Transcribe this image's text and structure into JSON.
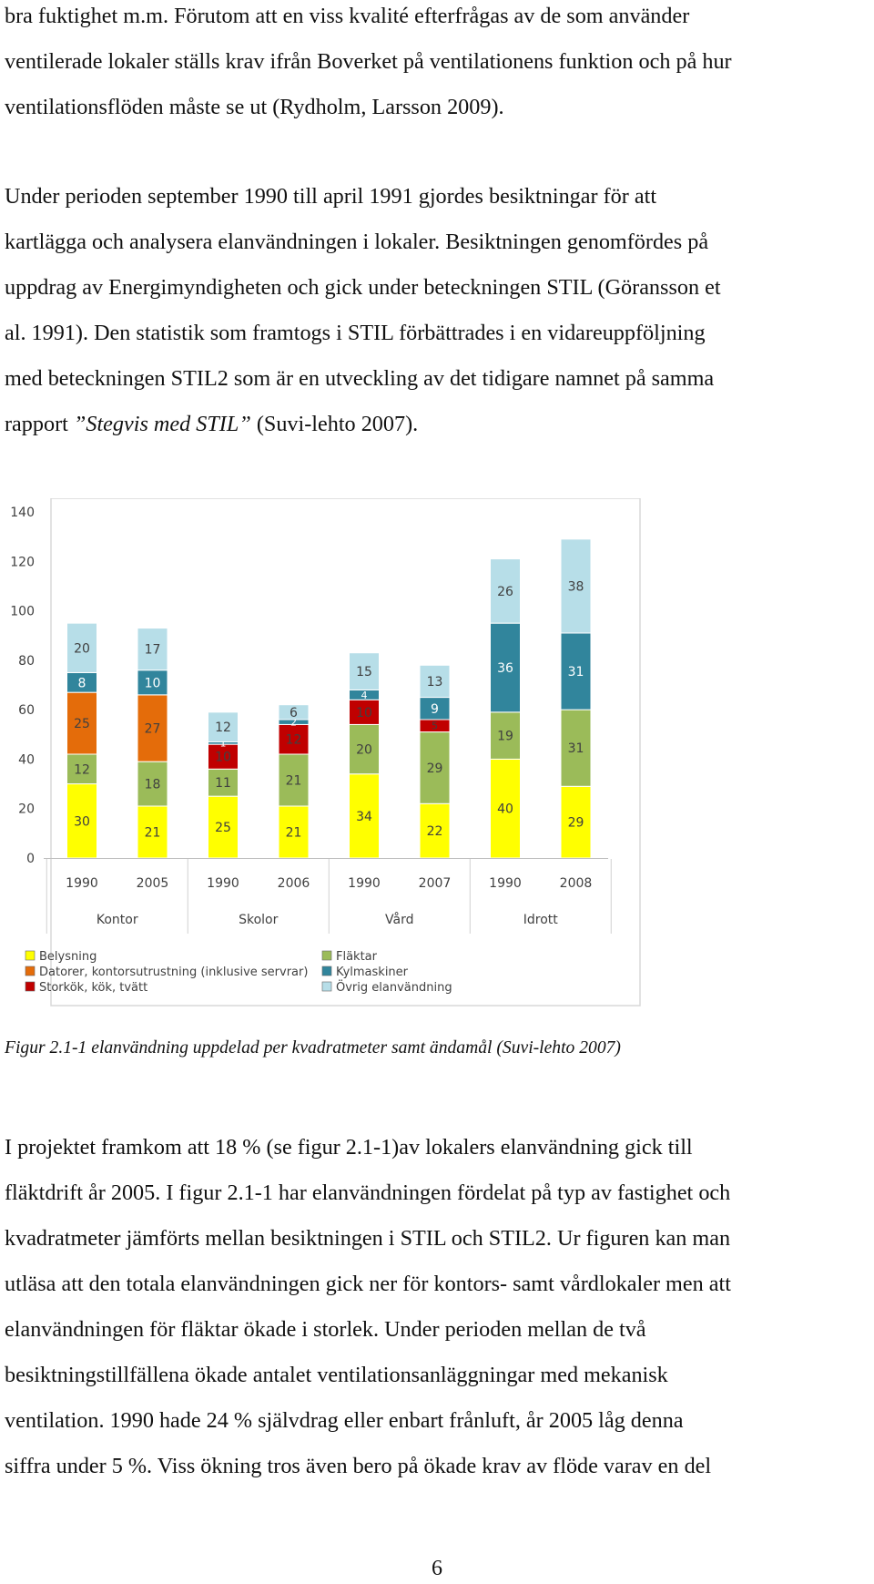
{
  "paragraph1": {
    "lines": [
      "bra fuktighet m.m. Förutom att en viss kvalité efterfrågas av de som använder",
      "ventilerade lokaler ställs krav ifrån Boverket på ventilationens funktion och på hur",
      "ventilationsflöden måste se ut (Rydholm, Larsson 2009)."
    ]
  },
  "paragraph2": {
    "lines": [
      "Under perioden september 1990 till april 1991 gjordes besiktningar för att",
      "kartlägga och analysera elanvändningen i lokaler. Besiktningen genomfördes på",
      "uppdrag av Energimyndigheten och gick under beteckningen STIL (Göransson et",
      "al. 1991). Den statistik som framtogs i STIL förbättrades i en vidareuppföljning",
      "med beteckningen STIL2 som är en utveckling av det tidigare namnet på samma"
    ],
    "last_line_pre": "rapport ",
    "last_line_italic": "”Stegvis med STIL”",
    "last_line_post": " (Suvi-lehto 2007)."
  },
  "chart_data": {
    "type": "bar",
    "stacked": true,
    "groups": [
      "Kontor",
      "Skolor",
      "Vård",
      "Idrott"
    ],
    "categories": [
      "1990",
      "2005",
      "1990",
      "2006",
      "1990",
      "2007",
      "1990",
      "2008"
    ],
    "series": [
      {
        "name": "Belysning",
        "color": "#ffff00",
        "values": [
          30,
          21,
          25,
          21,
          34,
          22,
          40,
          29
        ]
      },
      {
        "name": "Fläktar",
        "color": "#9bbb59",
        "values": [
          12,
          18,
          11,
          21,
          20,
          29,
          19,
          31
        ]
      },
      {
        "name": "Datorer, kontorsutrustning (inklusive servrar)",
        "color": "#e46c0a",
        "values": [
          25,
          27,
          0,
          0,
          0,
          0,
          0,
          0
        ]
      },
      {
        "name": "Storkök, kök, tvätt",
        "color": "#c00000",
        "values": [
          0,
          0,
          10,
          12,
          10,
          5,
          0,
          0
        ]
      },
      {
        "name": "Kylmaskiner",
        "color": "#31859c",
        "values": [
          8,
          10,
          1,
          2,
          4,
          9,
          36,
          31
        ]
      },
      {
        "name": "Övrig elanvändning",
        "color": "#b7dee8",
        "values": [
          20,
          17,
          12,
          6,
          15,
          13,
          26,
          38
        ]
      }
    ],
    "data_labels": [
      [
        "30",
        "12",
        "25",
        null,
        "8",
        "20"
      ],
      [
        "21",
        "18",
        "27",
        null,
        "10",
        "17"
      ],
      [
        "25",
        "11",
        null,
        "10",
        "1",
        "12"
      ],
      [
        "21",
        "21",
        null,
        "12",
        "2",
        "6"
      ],
      [
        "34",
        "20",
        null,
        "10",
        "4",
        "15"
      ],
      [
        "22",
        "29",
        null,
        "5",
        "9",
        "13"
      ],
      [
        "40",
        "19",
        null,
        null,
        "36",
        "26"
      ],
      [
        "29",
        "31",
        null,
        null,
        "31",
        "38"
      ]
    ],
    "ylim": [
      0,
      140
    ],
    "yticks": [
      "0",
      "20",
      "40",
      "60",
      "80",
      "100",
      "120",
      "140"
    ],
    "legend_position": "bottom",
    "legend_order": [
      "Belysning",
      "Fläktar",
      "Datorer, kontorsutrustning (inklusive servrar)",
      "Kylmaskiner",
      "Storkök, kök, tvätt",
      "Övrig elanvändning"
    ],
    "title": "",
    "xlabel": "",
    "ylabel": ""
  },
  "caption": "Figur 2.1-1 elanvändning uppdelad per kvadratmeter samt ändamål (Suvi-lehto 2007)",
  "paragraph3": {
    "lines": [
      "I projektet framkom att 18 % (se figur 2.1-1)av lokalers elanvändning gick till",
      "fläktdrift år 2005. I figur 2.1-1 har elanvändningen fördelat på typ av fastighet och",
      "kvadratmeter jämförts mellan besiktningen i STIL och STIL2. Ur figuren kan man",
      "utläsa att den totala elanvändningen gick ner för kontors- samt vårdlokaler men att",
      "elanvändningen för fläktar ökade i storlek. Under perioden mellan de två",
      "besiktningstillfällena ökade antalet ventilationsanläggningar med mekanisk",
      "ventilation. 1990 hade 24 % självdrag eller enbart frånluft, år 2005 låg denna",
      "siffra under 5 %. Viss ökning tros även bero på ökade krav av flöde varav en del"
    ]
  },
  "page_number": "6"
}
